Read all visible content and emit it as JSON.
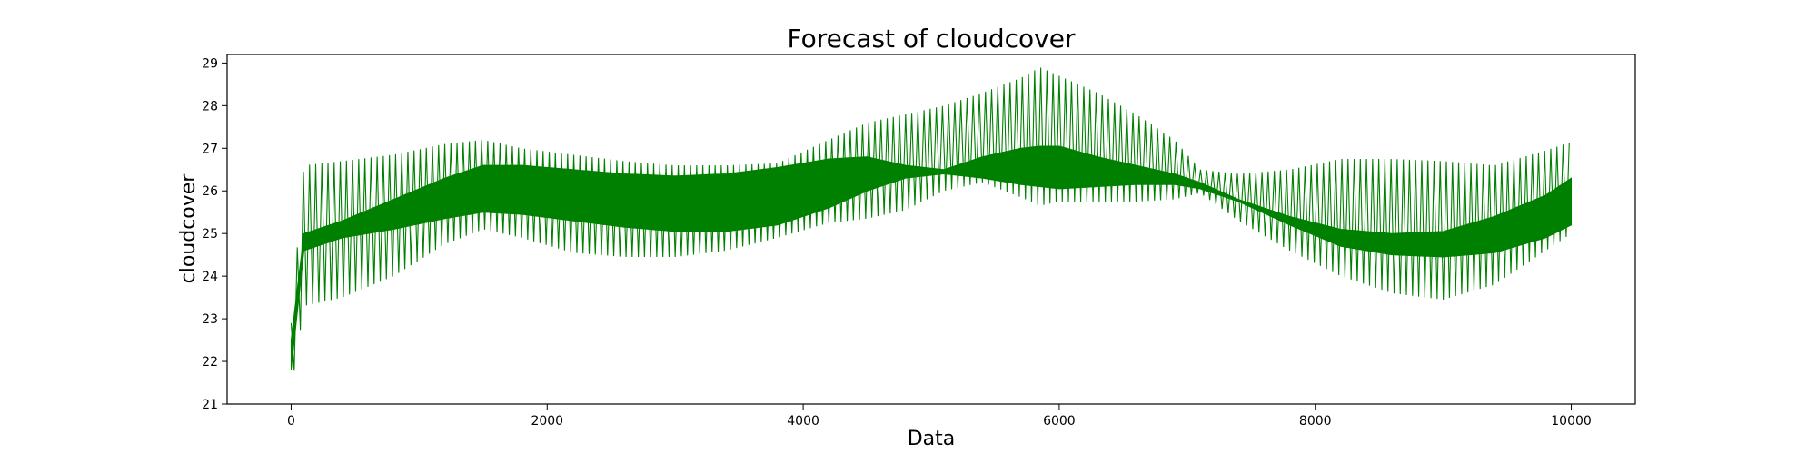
{
  "chart_data": {
    "type": "line",
    "title": "Forecast of cloudcover",
    "xlabel": "Data",
    "ylabel": "cloudcover",
    "xlim": [
      -500,
      10500
    ],
    "ylim": [
      21,
      29.2
    ],
    "xticks": [
      "0",
      "2000",
      "4000",
      "6000",
      "8000",
      "10000"
    ],
    "yticks": [
      "21",
      "22",
      "23",
      "24",
      "25",
      "26",
      "27",
      "28",
      "29"
    ],
    "grid": false,
    "legend": "none",
    "series": [
      {
        "color": "#008000",
        "oscillation_period": 48,
        "x": [
          0,
          100,
          400,
          800,
          1200,
          1500,
          1800,
          2200,
          2600,
          3000,
          3400,
          3800,
          4200,
          4500,
          4800,
          5100,
          5400,
          5700,
          5850,
          6000,
          6300,
          6600,
          6900,
          7100,
          7400,
          7800,
          8200,
          8600,
          9000,
          9400,
          9800,
          10000
        ],
        "upper": [
          22.9,
          26.6,
          26.7,
          26.85,
          27.1,
          27.2,
          27.0,
          26.85,
          26.7,
          26.6,
          26.6,
          26.65,
          27.2,
          27.6,
          27.8,
          28.0,
          28.3,
          28.65,
          28.9,
          28.7,
          28.3,
          27.8,
          27.2,
          26.5,
          26.4,
          26.5,
          26.75,
          26.75,
          26.7,
          26.6,
          26.95,
          27.15
        ],
        "lower": [
          21.3,
          23.3,
          23.5,
          24.0,
          24.75,
          25.1,
          24.9,
          24.55,
          24.45,
          24.45,
          24.6,
          24.9,
          25.25,
          25.35,
          25.55,
          26.0,
          26.2,
          25.85,
          25.65,
          25.75,
          25.75,
          25.75,
          25.8,
          25.95,
          25.3,
          24.6,
          24.0,
          23.6,
          23.45,
          23.8,
          24.6,
          25.0
        ],
        "band_upper": [
          22.5,
          25.0,
          25.3,
          25.8,
          26.3,
          26.6,
          26.6,
          26.5,
          26.4,
          26.35,
          26.4,
          26.55,
          26.75,
          26.8,
          26.6,
          26.5,
          26.8,
          27.0,
          27.05,
          27.05,
          26.8,
          26.6,
          26.4,
          26.2,
          25.8,
          25.4,
          25.1,
          25.0,
          25.05,
          25.4,
          25.9,
          26.3
        ],
        "band_lower": [
          21.8,
          24.6,
          24.9,
          25.1,
          25.35,
          25.5,
          25.45,
          25.3,
          25.15,
          25.05,
          25.05,
          25.2,
          25.6,
          26.0,
          26.3,
          26.4,
          26.3,
          26.15,
          26.1,
          26.05,
          26.1,
          26.15,
          26.15,
          26.05,
          25.75,
          25.2,
          24.7,
          24.5,
          24.45,
          24.55,
          24.9,
          25.2
        ]
      }
    ]
  }
}
